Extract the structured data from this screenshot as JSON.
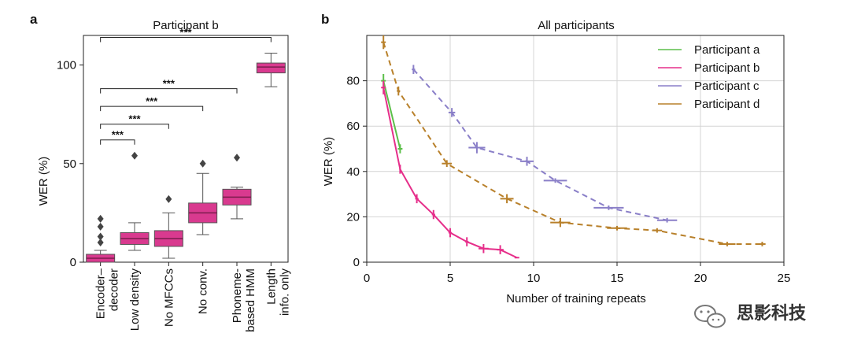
{
  "panel_a_letter": "a",
  "panel_b_letter": "b",
  "watermark": "思影科技",
  "chart_data": [
    {
      "type": "box",
      "title": "Participant b",
      "ylabel": "WER (%)",
      "xlabel": "",
      "ylim": [
        0,
        115
      ],
      "yticks": [
        0,
        50,
        100
      ],
      "grid": false,
      "box_color": "#d93a8f",
      "categories": [
        [
          "Encoder–",
          "decoder"
        ],
        [
          "Low density"
        ],
        [
          "No MFCCs"
        ],
        [
          "No conv."
        ],
        [
          "Phoneme-",
          "based HMM"
        ],
        [
          "Length",
          "info. only"
        ]
      ],
      "boxes": [
        {
          "whisker_low": 0,
          "q1": 0,
          "median": 2,
          "q3": 4,
          "whisker_high": 6,
          "outliers": [
            10,
            13,
            18,
            22
          ]
        },
        {
          "whisker_low": 6,
          "q1": 9,
          "median": 12,
          "q3": 15,
          "whisker_high": 20,
          "outliers": [
            54
          ]
        },
        {
          "whisker_low": 2,
          "q1": 8,
          "median": 12,
          "q3": 16,
          "whisker_high": 25,
          "outliers": [
            32
          ]
        },
        {
          "whisker_low": 14,
          "q1": 20,
          "median": 25,
          "q3": 30,
          "whisker_high": 45,
          "outliers": [
            50
          ]
        },
        {
          "whisker_low": 22,
          "q1": 29,
          "median": 33,
          "q3": 37,
          "whisker_high": 38,
          "outliers": [
            53
          ]
        },
        {
          "whisker_low": 89,
          "q1": 96,
          "median": 99,
          "q3": 101,
          "whisker_high": 106,
          "outliers": []
        }
      ],
      "significance": [
        {
          "from": 0,
          "to": 1,
          "label": "***",
          "y": 62
        },
        {
          "from": 0,
          "to": 2,
          "label": "***",
          "y": 70
        },
        {
          "from": 0,
          "to": 3,
          "label": "***",
          "y": 79
        },
        {
          "from": 0,
          "to": 4,
          "label": "***",
          "y": 88
        },
        {
          "from": 0,
          "to": 5,
          "label": "***",
          "y": 114
        }
      ]
    },
    {
      "type": "line",
      "title": "All participants",
      "xlabel": "Number of training repeats",
      "ylabel": "WER (%)",
      "xlim": [
        0,
        25
      ],
      "ylim": [
        0,
        100
      ],
      "xticks": [
        0,
        5,
        10,
        15,
        20,
        25
      ],
      "yticks": [
        0,
        20,
        40,
        60,
        80
      ],
      "grid": true,
      "legend_position": "top-right",
      "series": [
        {
          "name": "Participant a",
          "color": "#5cbf4a",
          "dashed": false,
          "x": [
            1,
            2
          ],
          "y": [
            80,
            50
          ],
          "xerr": [
            0,
            0
          ],
          "yerr": [
            3,
            2
          ]
        },
        {
          "name": "Participant b",
          "color": "#e62e8a",
          "dashed": false,
          "x": [
            1,
            2,
            3,
            4,
            5,
            6,
            7,
            8,
            9
          ],
          "y": [
            77,
            41,
            28,
            21,
            13,
            9,
            6,
            5.5,
            2
          ],
          "xerr": [
            0,
            0.05,
            0.1,
            0.1,
            0.1,
            0.1,
            0.3,
            0.2,
            0
          ],
          "yerr": [
            3,
            2,
            2,
            2,
            2,
            2,
            2,
            2,
            0
          ]
        },
        {
          "name": "Participant c",
          "color": "#8a7fc8",
          "dashed": true,
          "x": [
            2.8,
            5.1,
            6.6,
            9.6,
            11.3,
            14.5,
            18.0
          ],
          "y": [
            85,
            66,
            50.5,
            44.5,
            36,
            24,
            18.5
          ],
          "xerr": [
            0.1,
            0.2,
            0.5,
            0.4,
            0.7,
            0.9,
            0.6
          ],
          "yerr": [
            2,
            2,
            2.5,
            2,
            1,
            1,
            1
          ]
        },
        {
          "name": "Participant d",
          "color": "#b8802a",
          "dashed": true,
          "x": [
            1,
            1.9,
            4.8,
            8.4,
            11.6,
            15.0,
            17.4,
            21.6,
            23.7
          ],
          "y": [
            97,
            75.5,
            43.5,
            28,
            17.5,
            15,
            14,
            8,
            8
          ],
          "xerr": [
            0,
            0.1,
            0.3,
            0.4,
            0.6,
            0.6,
            0.3,
            0.5,
            0.2
          ],
          "yerr": [
            3,
            2,
            1.5,
            2,
            2,
            1,
            1,
            1,
            1
          ]
        }
      ]
    }
  ]
}
